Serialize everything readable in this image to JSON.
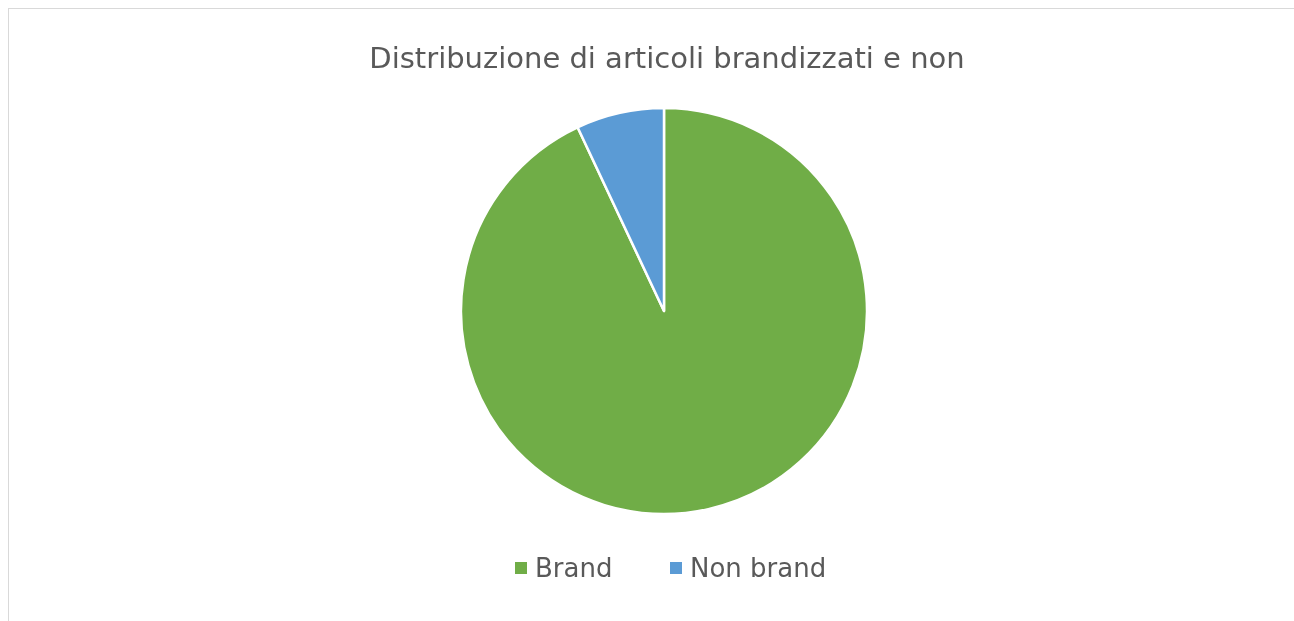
{
  "chart_data": {
    "type": "pie",
    "title": "Distribuzione di articoli brandizzati e non",
    "categories": [
      "Brand",
      "Non brand"
    ],
    "values": [
      93,
      7
    ],
    "colors": [
      "#70ad47",
      "#5b9bd5"
    ],
    "legend": "bottom"
  }
}
